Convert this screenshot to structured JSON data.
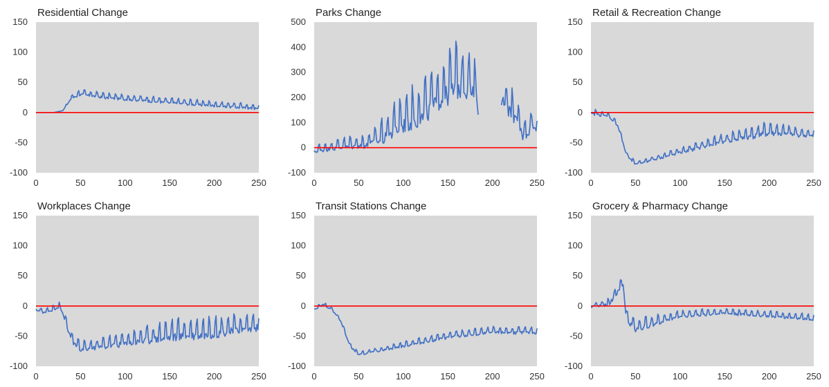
{
  "colors": {
    "plot_bg": "#d9d9d9",
    "series": "#4472c4",
    "zero_line": "#ff0000",
    "text": "#333333"
  },
  "chart_data": [
    {
      "type": "line",
      "title": "Residential Change",
      "xlabel": "",
      "ylabel": "",
      "xlim": [
        0,
        250
      ],
      "ylim": [
        -100,
        150
      ],
      "xticks": [
        0,
        50,
        100,
        150,
        200,
        250
      ],
      "yticks": [
        -100,
        -50,
        0,
        50,
        100,
        150
      ],
      "grid": false,
      "reference_line": {
        "y": 0,
        "color": "#ff0000"
      },
      "series": [
        {
          "color": "#4472c4",
          "profile": [
            [
              0,
              0
            ],
            [
              20,
              0
            ],
            [
              30,
              3
            ],
            [
              40,
              25
            ],
            [
              50,
              32
            ],
            [
              80,
              26
            ],
            [
              100,
              24
            ],
            [
              150,
              18
            ],
            [
              200,
              13
            ],
            [
              250,
              8
            ]
          ],
          "weekly_amplitude": [
            [
              0,
              0
            ],
            [
              30,
              0
            ],
            [
              45,
              5
            ],
            [
              250,
              5
            ]
          ]
        }
      ]
    },
    {
      "type": "line",
      "title": "Parks Change",
      "xlabel": "",
      "ylabel": "",
      "xlim": [
        0,
        250
      ],
      "ylim": [
        -100,
        500
      ],
      "xticks": [
        0,
        50,
        100,
        150,
        200,
        250
      ],
      "yticks": [
        -100,
        0,
        100,
        200,
        300,
        400,
        500
      ],
      "grid": false,
      "reference_line": {
        "y": 0,
        "color": "#ff0000"
      },
      "gap": [
        184,
        210
      ],
      "series": [
        {
          "color": "#4472c4",
          "profile": [
            [
              0,
              -10
            ],
            [
              30,
              10
            ],
            [
              60,
              20
            ],
            [
              80,
              60
            ],
            [
              100,
              120
            ],
            [
              120,
              150
            ],
            [
              140,
              220
            ],
            [
              160,
              280
            ],
            [
              175,
              270
            ],
            [
              184,
              200
            ],
            [
              210,
              220
            ],
            [
              225,
              140
            ],
            [
              235,
              60
            ],
            [
              245,
              100
            ],
            [
              250,
              80
            ]
          ],
          "weekly_amplitude": [
            [
              0,
              15
            ],
            [
              60,
              30
            ],
            [
              100,
              80
            ],
            [
              160,
              110
            ],
            [
              185,
              90
            ],
            [
              250,
              40
            ]
          ]
        }
      ]
    },
    {
      "type": "line",
      "title": "Retail & Recreation Change",
      "xlabel": "",
      "ylabel": "",
      "xlim": [
        0,
        250
      ],
      "ylim": [
        -100,
        150
      ],
      "xticks": [
        0,
        50,
        100,
        150,
        200,
        250
      ],
      "yticks": [
        -100,
        -50,
        0,
        50,
        100,
        150
      ],
      "grid": false,
      "reference_line": {
        "y": 0,
        "color": "#ff0000"
      },
      "series": [
        {
          "color": "#4472c4",
          "profile": [
            [
              0,
              0
            ],
            [
              20,
              -5
            ],
            [
              30,
              -20
            ],
            [
              40,
              -70
            ],
            [
              50,
              -85
            ],
            [
              100,
              -65
            ],
            [
              150,
              -45
            ],
            [
              200,
              -30
            ],
            [
              250,
              -37
            ]
          ],
          "weekly_amplitude": [
            [
              0,
              5
            ],
            [
              40,
              3
            ],
            [
              100,
              5
            ],
            [
              200,
              12
            ],
            [
              250,
              6
            ]
          ]
        }
      ]
    },
    {
      "type": "line",
      "title": "Workplaces Change",
      "xlabel": "",
      "ylabel": "",
      "xlim": [
        0,
        250
      ],
      "ylim": [
        -100,
        150
      ],
      "xticks": [
        0,
        50,
        100,
        150,
        200,
        250
      ],
      "yticks": [
        -100,
        -50,
        0,
        50,
        100,
        150
      ],
      "grid": false,
      "reference_line": {
        "y": 0,
        "color": "#ff0000"
      },
      "series": [
        {
          "color": "#4472c4",
          "profile": [
            [
              0,
              -5
            ],
            [
              10,
              -10
            ],
            [
              25,
              0
            ],
            [
              30,
              -10
            ],
            [
              40,
              -55
            ],
            [
              50,
              -70
            ],
            [
              100,
              -58
            ],
            [
              150,
              -45
            ],
            [
              200,
              -40
            ],
            [
              250,
              -30
            ]
          ],
          "weekly_amplitude": [
            [
              0,
              3
            ],
            [
              40,
              8
            ],
            [
              100,
              12
            ],
            [
              150,
              18
            ],
            [
              250,
              16
            ]
          ]
        }
      ]
    },
    {
      "type": "line",
      "title": "Transit Stations Change",
      "xlabel": "",
      "ylabel": "",
      "xlim": [
        0,
        250
      ],
      "ylim": [
        -100,
        150
      ],
      "xticks": [
        0,
        50,
        100,
        150,
        200,
        250
      ],
      "yticks": [
        -100,
        -50,
        0,
        50,
        100,
        150
      ],
      "grid": false,
      "reference_line": {
        "y": 0,
        "color": "#ff0000"
      },
      "series": [
        {
          "color": "#4472c4",
          "profile": [
            [
              0,
              -5
            ],
            [
              10,
              3
            ],
            [
              20,
              -5
            ],
            [
              30,
              -25
            ],
            [
              40,
              -65
            ],
            [
              50,
              -80
            ],
            [
              100,
              -65
            ],
            [
              150,
              -50
            ],
            [
              200,
              -42
            ],
            [
              250,
              -42
            ]
          ],
          "weekly_amplitude": [
            [
              0,
              3
            ],
            [
              50,
              3
            ],
            [
              150,
              6
            ],
            [
              250,
              6
            ]
          ]
        }
      ]
    },
    {
      "type": "line",
      "title": "Grocery & Pharmacy Change",
      "xlabel": "",
      "ylabel": "",
      "xlim": [
        0,
        250
      ],
      "ylim": [
        -100,
        150
      ],
      "xticks": [
        0,
        50,
        100,
        150,
        200,
        250
      ],
      "yticks": [
        -100,
        -50,
        0,
        50,
        100,
        150
      ],
      "grid": false,
      "reference_line": {
        "y": 0,
        "color": "#ff0000"
      },
      "series": [
        {
          "color": "#4472c4",
          "profile": [
            [
              0,
              0
            ],
            [
              20,
              5
            ],
            [
              32,
              30
            ],
            [
              36,
              40
            ],
            [
              40,
              -20
            ],
            [
              50,
              -35
            ],
            [
              100,
              -15
            ],
            [
              150,
              -10
            ],
            [
              200,
              -15
            ],
            [
              250,
              -20
            ]
          ],
          "weekly_amplitude": [
            [
              0,
              3
            ],
            [
              40,
              10
            ],
            [
              60,
              10
            ],
            [
              100,
              6
            ],
            [
              250,
              5
            ]
          ]
        }
      ]
    }
  ]
}
